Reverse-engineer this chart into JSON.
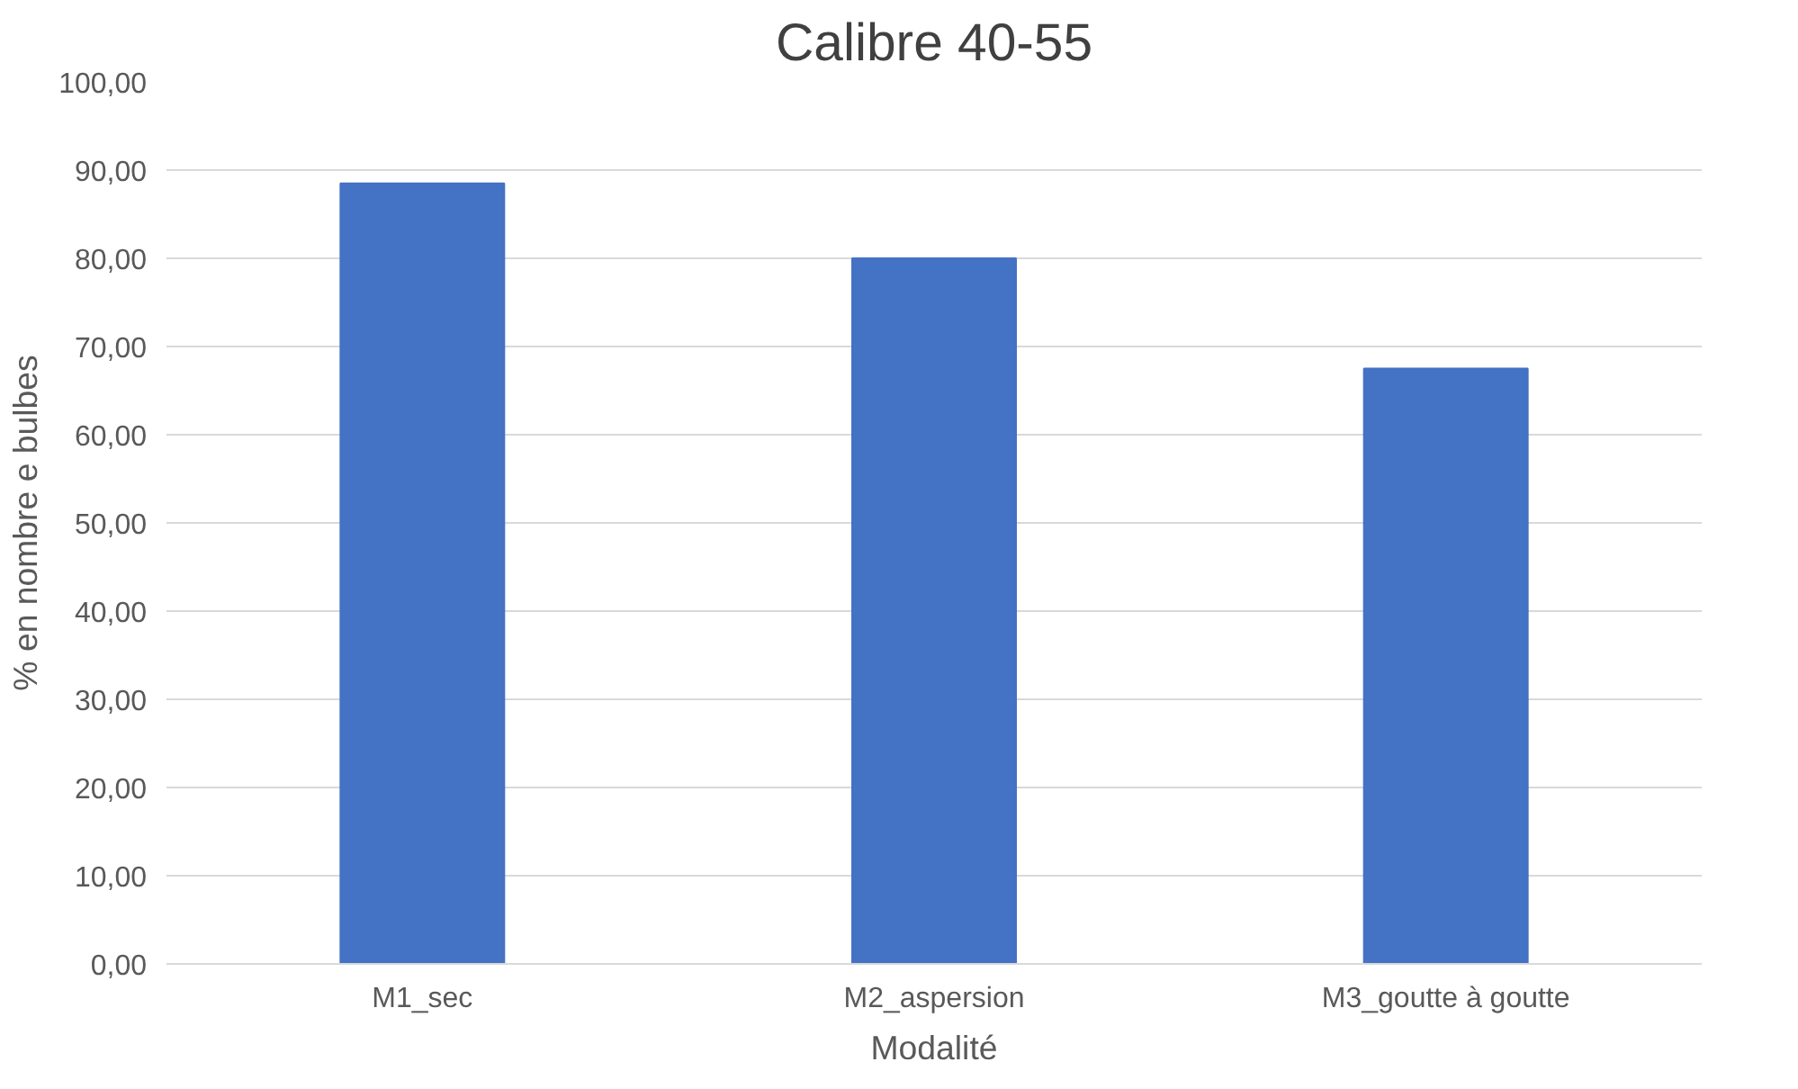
{
  "chart_data": {
    "type": "bar",
    "title": "Calibre 40-55",
    "xlabel": "Modalité",
    "ylabel": "% en nombre e bulbes",
    "categories": [
      "M1_sec",
      "M2_aspersion",
      "M3_goutte à goutte"
    ],
    "values": [
      88.5,
      80,
      67.5
    ],
    "color": "#4472c4",
    "ylim": [
      0,
      100
    ],
    "yticks": [
      {
        "value": 0,
        "label": "0,00"
      },
      {
        "value": 10,
        "label": "10,00"
      },
      {
        "value": 20,
        "label": "20,00"
      },
      {
        "value": 30,
        "label": "30,00"
      },
      {
        "value": 40,
        "label": "40,00"
      },
      {
        "value": 50,
        "label": "50,00"
      },
      {
        "value": 60,
        "label": "60,00"
      },
      {
        "value": 70,
        "label": "70,00"
      },
      {
        "value": 80,
        "label": "80,00"
      },
      {
        "value": 90,
        "label": "90,00"
      },
      {
        "value": 100,
        "label": "100,00"
      }
    ],
    "grid": "y"
  }
}
